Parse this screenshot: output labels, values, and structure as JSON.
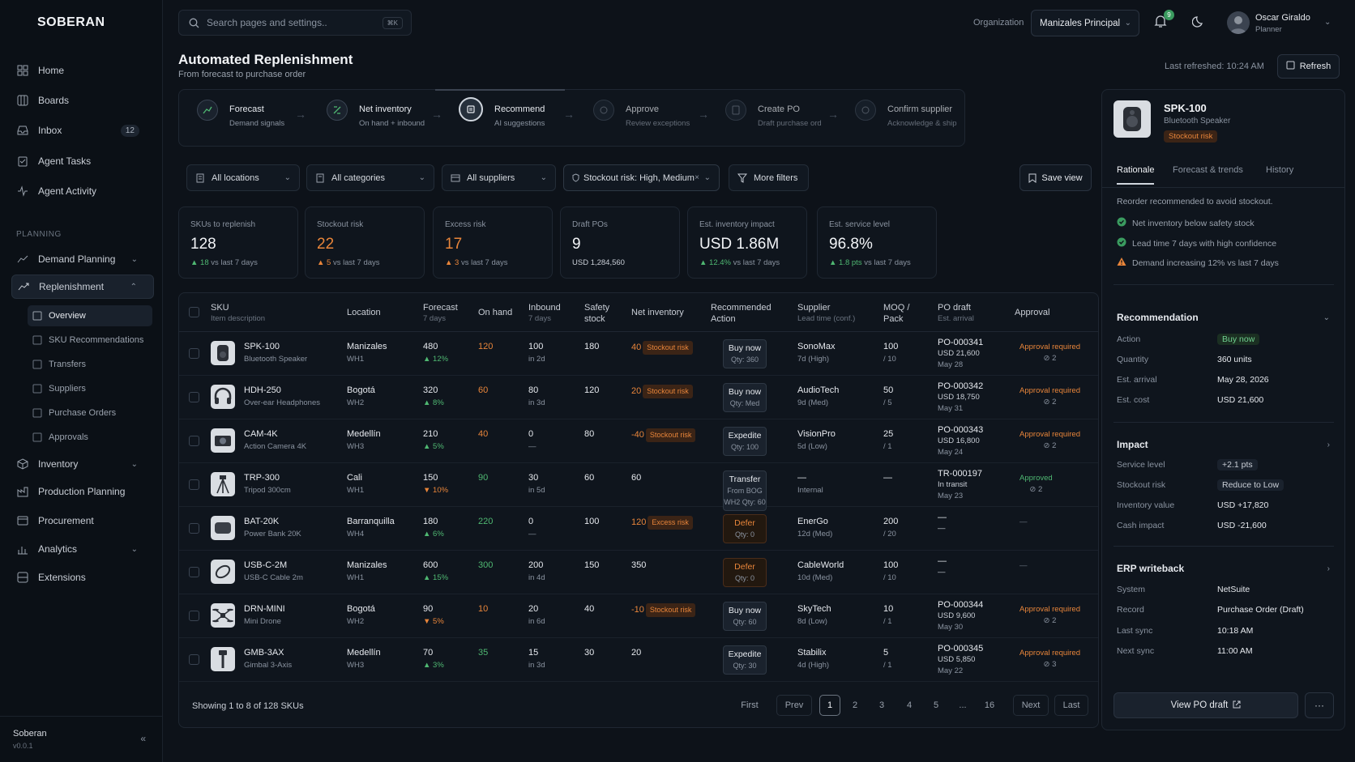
{
  "brand": "SOBERAN",
  "sidebar": {
    "items": [
      {
        "label": "Home",
        "icon": "home-icon"
      },
      {
        "label": "Boards",
        "icon": "boards-icon"
      },
      {
        "label": "Inbox",
        "icon": "inbox-icon",
        "badge": "12"
      },
      {
        "label": "Agent Tasks",
        "icon": "agent-tasks-icon"
      },
      {
        "label": "Agent Activity",
        "icon": "activity-icon"
      }
    ],
    "section_label": "PLANNING",
    "planning": [
      {
        "label": "Demand Planning",
        "icon": "demand-icon",
        "chevron": "⌄"
      },
      {
        "label": "Replenishment",
        "icon": "replenishment-icon",
        "chevron": "⌃"
      }
    ],
    "sub_items": [
      "Overview",
      "SKU Recommendations",
      "Transfers",
      "Suppliers",
      "Purchase Orders",
      "Approvals"
    ],
    "lower": [
      {
        "label": "Inventory",
        "icon": "inventory-icon",
        "chevron": "⌄"
      },
      {
        "label": "Production Planning",
        "icon": "production-icon"
      },
      {
        "label": "Procurement",
        "icon": "procurement-icon"
      },
      {
        "label": "Analytics",
        "icon": "analytics-icon",
        "chevron": "⌄"
      },
      {
        "label": "Extensions",
        "icon": "extensions-icon"
      }
    ],
    "footer": {
      "name": "Soberan",
      "version": "v0.0.1"
    }
  },
  "topbar": {
    "search_placeholder": "Search pages and settings..",
    "search_kbd": "⌘K",
    "org_label": "Organization",
    "org_value": "Manizales Principal",
    "notif_count": "9",
    "user_name": "Oscar Giraldo",
    "user_role": "Planner"
  },
  "page": {
    "title": "Automated Replenishment",
    "subtitle": "From forecast to purchase order",
    "last_refreshed": "Last refreshed: 10:24 AM",
    "refresh_label": "Refresh"
  },
  "steps": [
    {
      "title": "Forecast",
      "sub": "Demand signals"
    },
    {
      "title": "Net inventory",
      "sub": "On hand + inbound"
    },
    {
      "title": "Recommend",
      "sub": "AI suggestions"
    },
    {
      "title": "Approve",
      "sub": "Review exceptions"
    },
    {
      "title": "Create PO",
      "sub": "Draft purchase ord"
    },
    {
      "title": "Confirm supplier",
      "sub": "Acknowledge & ship"
    }
  ],
  "filters": {
    "locations": "All locations",
    "categories": "All categories",
    "suppliers": "All suppliers",
    "risk": "Stockout risk: High, Medium",
    "more": "More filters",
    "save_view": "Save view"
  },
  "kpis": [
    {
      "label": "SKUs to replenish",
      "value": "128",
      "delta": "18",
      "delta_text": "vs last 7 days",
      "tone": "normal"
    },
    {
      "label": "Stockout risk",
      "value": "22",
      "delta": "5",
      "delta_text": "vs last 7 days",
      "tone": "orange"
    },
    {
      "label": "Excess risk",
      "value": "17",
      "delta": "3",
      "delta_text": "vs last 7 days",
      "tone": "orange"
    },
    {
      "label": "Draft POs",
      "value": "9",
      "delta": "",
      "delta_text": "USD 1,284,560",
      "tone": "normal"
    },
    {
      "label": "Est. inventory impact",
      "value": "USD 1.86M",
      "delta": "12.4%",
      "delta_text": "vs last 7 days",
      "tone": "normal"
    },
    {
      "label": "Est. service level",
      "value": "96.8%",
      "delta": "1.8 pts",
      "delta_text": "vs last 7 days",
      "tone": "normal"
    }
  ],
  "table": {
    "headers": {
      "sku": "SKU",
      "sku_sub": "Item description",
      "location": "Location",
      "forecast": "Forecast",
      "forecast_sub": "7 days",
      "onhand": "On hand",
      "inbound": "Inbound",
      "inbound_sub": "7 days",
      "safety": "Safety",
      "safety_sub": "stock",
      "net": "Net inventory",
      "rec": "Recommended",
      "rec_sub": "Action",
      "supplier": "Supplier",
      "supplier_sub": "Lead time (conf.)",
      "moq": "MOQ /",
      "moq_sub": "Pack",
      "po": "PO draft",
      "po_sub": "Est. arrival",
      "approval": "Approval"
    },
    "rows": [
      {
        "sku": "SPK-100",
        "desc": "Bluetooth Speaker",
        "loc": "Manizales",
        "wh": "WH1",
        "fc": "480",
        "fcd": "▲ 12%",
        "fcd_dir": "up",
        "onhand": "120",
        "oh_tone": "orange",
        "inb": "100",
        "inb_sub": "in 2d",
        "safety": "180",
        "net": "40",
        "risk": "Stockout risk",
        "action": "Buy now",
        "qty": "Qty: 360",
        "act_tone": "normal",
        "sup": "SonoMax",
        "lead": "7d (High)",
        "moq": "100",
        "pack": "/ 10",
        "po1": "PO-000341",
        "po2": "USD 21,600",
        "po3": "May 28",
        "appr": "Approval required",
        "appr_sub": "⊘ 2",
        "appr_tone": "orange",
        "thumb": "speaker"
      },
      {
        "sku": "HDH-250",
        "desc": "Over-ear Headphones",
        "loc": "Bogotá",
        "wh": "WH2",
        "fc": "320",
        "fcd": "▲ 8%",
        "fcd_dir": "up",
        "onhand": "60",
        "oh_tone": "orange",
        "inb": "80",
        "inb_sub": "in 3d",
        "safety": "120",
        "net": "20",
        "risk": "Stockout risk",
        "action": "Buy now",
        "qty": "Qty: Med",
        "act_tone": "normal",
        "sup": "AudioTech",
        "lead": "9d (Med)",
        "moq": "50",
        "pack": "/ 5",
        "po1": "PO-000342",
        "po2": "USD 18,750",
        "po3": "May 31",
        "appr": "Approval required",
        "appr_sub": "⊘ 2",
        "appr_tone": "orange",
        "thumb": "headphones"
      },
      {
        "sku": "CAM-4K",
        "desc": "Action Camera 4K",
        "loc": "Medellín",
        "wh": "WH3",
        "fc": "210",
        "fcd": "▲ 5%",
        "fcd_dir": "up",
        "onhand": "40",
        "oh_tone": "orange",
        "inb": "0",
        "inb_sub": "—",
        "safety": "80",
        "net": "-40",
        "risk": "Stockout risk",
        "action": "Expedite",
        "qty": "Qty: 100",
        "act_tone": "normal",
        "sup": "VisionPro",
        "lead": "5d (Low)",
        "moq": "25",
        "pack": "/ 1",
        "po1": "PO-000343",
        "po2": "USD 16,800",
        "po3": "May 24",
        "appr": "Approval required",
        "appr_sub": "⊘ 2",
        "appr_tone": "orange",
        "thumb": "camera"
      },
      {
        "sku": "TRP-300",
        "desc": "Tripod 300cm",
        "loc": "Cali",
        "wh": "WH1",
        "fc": "150",
        "fcd": "▼ 10%",
        "fcd_dir": "down",
        "onhand": "90",
        "oh_tone": "green",
        "inb": "30",
        "inb_sub": "in 5d",
        "safety": "60",
        "net": "60",
        "risk": "",
        "action": "Transfer",
        "qty": "From BOG WH2 Qty: 60",
        "act_tone": "normal",
        "sup": "—",
        "lead": "Internal",
        "moq": "—",
        "pack": "",
        "po1": "TR-000197",
        "po2": "In transit",
        "po3": "May 23",
        "appr": "Approved",
        "appr_sub": "⊘ 2",
        "appr_tone": "green",
        "thumb": "tripod"
      },
      {
        "sku": "BAT-20K",
        "desc": "Power Bank 20K",
        "loc": "Barranquilla",
        "wh": "WH4",
        "fc": "180",
        "fcd": "▲ 6%",
        "fcd_dir": "up",
        "onhand": "220",
        "oh_tone": "green",
        "inb": "0",
        "inb_sub": "—",
        "safety": "100",
        "net": "120",
        "risk": "Excess risk",
        "action": "Defer",
        "qty": "Qty: 0",
        "act_tone": "defer",
        "sup": "EnerGo",
        "lead": "12d (Med)",
        "moq": "200",
        "pack": "/ 20",
        "po1": "—",
        "po2": "—",
        "po3": "",
        "appr": "—",
        "appr_sub": "",
        "appr_tone": "dim",
        "thumb": "powerbank"
      },
      {
        "sku": "USB-C-2M",
        "desc": "USB-C Cable 2m",
        "loc": "Manizales",
        "wh": "WH1",
        "fc": "600",
        "fcd": "▲ 15%",
        "fcd_dir": "up",
        "onhand": "300",
        "oh_tone": "green",
        "inb": "200",
        "inb_sub": "in 4d",
        "safety": "150",
        "net": "350",
        "risk": "",
        "action": "Defer",
        "qty": "Qty: 0",
        "act_tone": "defer",
        "sup": "CableWorld",
        "lead": "10d (Med)",
        "moq": "100",
        "pack": "/ 10",
        "po1": "—",
        "po2": "—",
        "po3": "",
        "appr": "—",
        "appr_sub": "",
        "appr_tone": "dim",
        "thumb": "cable"
      },
      {
        "sku": "DRN-MINI",
        "desc": "Mini Drone",
        "loc": "Bogotá",
        "wh": "WH2",
        "fc": "90",
        "fcd": "▼ 5%",
        "fcd_dir": "down",
        "onhand": "10",
        "oh_tone": "orange",
        "inb": "20",
        "inb_sub": "in 6d",
        "safety": "40",
        "net": "-10",
        "risk": "Stockout risk",
        "action": "Buy now",
        "qty": "Qty: 60",
        "act_tone": "normal",
        "sup": "SkyTech",
        "lead": "8d (Low)",
        "moq": "10",
        "pack": "/ 1",
        "po1": "PO-000344",
        "po2": "USD 9,600",
        "po3": "May 30",
        "appr": "Approval required",
        "appr_sub": "⊘ 2",
        "appr_tone": "orange",
        "thumb": "drone"
      },
      {
        "sku": "GMB-3AX",
        "desc": "Gimbal 3-Axis",
        "loc": "Medellín",
        "wh": "WH3",
        "fc": "70",
        "fcd": "▲ 3%",
        "fcd_dir": "up",
        "onhand": "35",
        "oh_tone": "green",
        "inb": "15",
        "inb_sub": "in 3d",
        "safety": "30",
        "net": "20",
        "risk": "",
        "action": "Expedite",
        "qty": "Qty: 30",
        "act_tone": "normal",
        "sup": "Stabilix",
        "lead": "4d (High)",
        "moq": "5",
        "pack": "/ 1",
        "po1": "PO-000345",
        "po2": "USD 5,850",
        "po3": "May 22",
        "appr": "Approval required",
        "appr_sub": "⊘ 3",
        "appr_tone": "orange",
        "thumb": "gimbal"
      }
    ],
    "footer": "Showing 1 to 8 of 128 SKUs",
    "pagination": [
      "First",
      "Prev",
      "1",
      "2",
      "3",
      "4",
      "5",
      "...",
      "16",
      "Next",
      "Last"
    ]
  },
  "panel": {
    "sku": "SPK-100",
    "desc": "Bluetooth Speaker",
    "badge": "Stockout risk",
    "tabs": [
      "Rationale",
      "Forecast & trends",
      "History"
    ],
    "rationale_intro": "Reorder recommended to avoid stockout.",
    "checks": [
      {
        "text": "Net inventory below safety stock",
        "type": "ok"
      },
      {
        "text": "Lead time 7 days with high confidence",
        "type": "ok"
      },
      {
        "text": "Demand increasing 12% vs last 7 days",
        "type": "warn"
      }
    ],
    "recommendation": {
      "title": "Recommendation",
      "rows": [
        [
          "Action",
          "Buy now"
        ],
        [
          "Quantity",
          "360 units"
        ],
        [
          "Est. arrival",
          "May 28, 2026"
        ],
        [
          "Est. cost",
          "USD 21,600"
        ]
      ]
    },
    "impact": {
      "title": "Impact",
      "rows": [
        [
          "Service level",
          "+2.1 pts"
        ],
        [
          "Stockout risk",
          "Reduce to Low"
        ],
        [
          "Inventory value",
          "USD +17,820"
        ],
        [
          "Cash impact",
          "USD -21,600"
        ]
      ]
    },
    "erp": {
      "title": "ERP writeback",
      "rows": [
        [
          "System",
          "NetSuite"
        ],
        [
          "Record",
          "Purchase Order (Draft)"
        ],
        [
          "Last sync",
          "10:18 AM"
        ],
        [
          "Next sync",
          "11:00 AM"
        ]
      ]
    },
    "view_po": "View PO draft",
    "more": "···"
  },
  "colors": {
    "bg": "#0d1219",
    "accent_orange": "#e8853a",
    "accent_green": "#4fb872"
  }
}
